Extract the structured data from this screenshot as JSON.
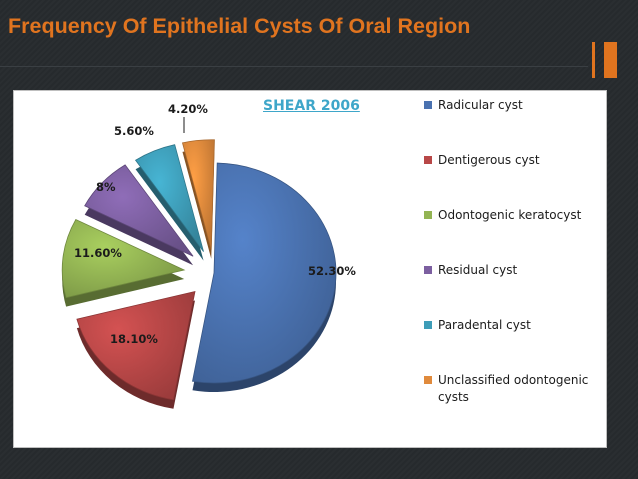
{
  "slide": {
    "title": "Frequency Of Epithelial Cysts Of Oral Region",
    "accent_color": "#e0741f"
  },
  "chart_data": {
    "type": "pie",
    "title": "",
    "source": "SHEAR 2006",
    "legend_position": "right",
    "exploded": true,
    "style": "3d",
    "slices": [
      {
        "name": "Radicular cyst",
        "value": 52.3,
        "label": "52.30%",
        "color": "#4a72b0"
      },
      {
        "name": "Dentigerous cyst",
        "value": 18.1,
        "label": "18.10%",
        "color": "#b84747"
      },
      {
        "name": "Odontogenic keratocyst",
        "value": 11.6,
        "label": "11.60%",
        "color": "#93b453"
      },
      {
        "name": "Residual cyst",
        "value": 8,
        "label": "8%",
        "color": "#7c5fa0"
      },
      {
        "name": "Paradental cyst",
        "value": 5.6,
        "label": "5.60%",
        "color": "#3e9db8"
      },
      {
        "name": "Unclassified odontogenic cysts",
        "value": 4.2,
        "label": "4.20%",
        "color": "#e08a3c"
      }
    ]
  }
}
